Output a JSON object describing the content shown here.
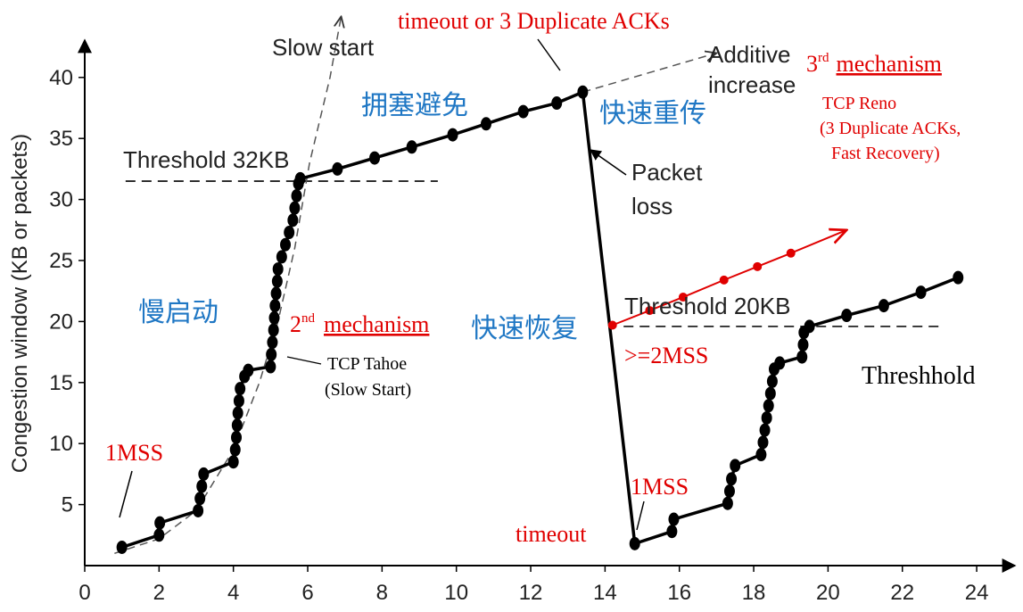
{
  "chart_data": {
    "type": "line",
    "ylabel": "Congestion window (KB or packets)",
    "xlim": [
      0,
      24
    ],
    "ylim": [
      0,
      40
    ],
    "x_ticks": [
      0,
      2,
      4,
      6,
      8,
      10,
      12,
      14,
      16,
      18,
      20,
      22,
      24
    ],
    "y_ticks": [
      5,
      10,
      15,
      20,
      25,
      30,
      35,
      40
    ],
    "grid": false,
    "series": [
      {
        "color": "#000000",
        "points": [
          [
            1,
            1.5
          ],
          [
            2,
            2.5
          ],
          [
            2.02,
            3.5
          ],
          [
            3.05,
            4.5
          ],
          [
            3.1,
            5.5
          ],
          [
            3.15,
            6.5
          ],
          [
            3.2,
            7.5
          ],
          [
            4,
            8.5
          ],
          [
            4.05,
            9.5
          ],
          [
            4.08,
            10.5
          ],
          [
            4.1,
            11.5
          ],
          [
            4.12,
            12.5
          ],
          [
            4.15,
            13.5
          ],
          [
            4.18,
            14.5
          ],
          [
            4.3,
            15.5
          ],
          [
            4.4,
            16
          ],
          [
            5,
            16.3
          ],
          [
            5.02,
            17.3
          ],
          [
            5.05,
            18.3
          ],
          [
            5.08,
            19.3
          ],
          [
            5.1,
            20.3
          ],
          [
            5.12,
            21.3
          ],
          [
            5.15,
            22.3
          ],
          [
            5.18,
            23.3
          ],
          [
            5.2,
            24.3
          ],
          [
            5.3,
            25.3
          ],
          [
            5.4,
            26.3
          ],
          [
            5.5,
            27.3
          ],
          [
            5.6,
            28.3
          ],
          [
            5.65,
            29.3
          ],
          [
            5.7,
            30.3
          ],
          [
            5.75,
            31.3
          ],
          [
            5.8,
            31.7
          ],
          [
            6.8,
            32.5
          ],
          [
            7.8,
            33.4
          ],
          [
            8.8,
            34.3
          ],
          [
            9.9,
            35.3
          ],
          [
            10.8,
            36.2
          ],
          [
            11.8,
            37.2
          ],
          [
            12.7,
            37.9
          ],
          [
            13.4,
            38.8
          ],
          [
            14.8,
            1.8
          ],
          [
            15.8,
            2.8
          ],
          [
            15.85,
            3.8
          ],
          [
            17.3,
            5.1
          ],
          [
            17.35,
            6.1
          ],
          [
            17.4,
            7.1
          ],
          [
            17.5,
            8.2
          ],
          [
            18.2,
            9.1
          ],
          [
            18.25,
            10.1
          ],
          [
            18.3,
            11.1
          ],
          [
            18.35,
            12.1
          ],
          [
            18.4,
            13.1
          ],
          [
            18.45,
            14.1
          ],
          [
            18.5,
            15.1
          ],
          [
            18.55,
            16.1
          ],
          [
            18.7,
            16.6
          ],
          [
            19.3,
            17.1
          ],
          [
            19.33,
            18.1
          ],
          [
            19.35,
            19.1
          ],
          [
            19.5,
            19.6
          ],
          [
            20.5,
            20.5
          ],
          [
            21.5,
            21.3
          ],
          [
            22.5,
            22.4
          ],
          [
            23.5,
            23.6
          ]
        ]
      },
      {
        "color": "#e00000",
        "points": [
          [
            14.2,
            19.7
          ],
          [
            15.2,
            20.9
          ],
          [
            16.1,
            22
          ],
          [
            17.2,
            23.4
          ],
          [
            18.1,
            24.5
          ],
          [
            19,
            25.6
          ]
        ]
      }
    ],
    "slow_start_curve": [
      [
        0.8,
        1
      ],
      [
        2,
        2.2
      ],
      [
        3,
        4.5
      ],
      [
        4,
        9.5
      ],
      [
        4.7,
        15
      ],
      [
        5.2,
        20
      ],
      [
        5.65,
        26
      ],
      [
        6.05,
        33
      ],
      [
        6.6,
        40
      ],
      [
        6.9,
        45
      ]
    ],
    "additive_increase_line": [
      [
        13.4,
        38.8
      ],
      [
        17,
        42
      ]
    ],
    "reno_arrow": [
      [
        19,
        25.6
      ],
      [
        20.5,
        27.5
      ]
    ],
    "thresholds": [
      {
        "label": "Threshold 32KB",
        "value": 31.5,
        "x_from": 1.1,
        "x_to": 9.5
      },
      {
        "label": "Threshold 20KB",
        "value": 19.6,
        "x_from": 14.5,
        "x_to": 23
      }
    ],
    "annotations": {
      "slow_start": "Slow start",
      "timeout_dup": "timeout or 3 Duplicate ACKs",
      "additive_increase": "Additive\nincrease",
      "third_mech_number": "3",
      "third_mech_sup": "rd",
      "third_mech_word": "mechanism",
      "tcp_reno": "TCP Reno",
      "reno_detail_1": "(3 Duplicate ACKs,",
      "reno_detail_2": "Fast Recovery)",
      "congestion_avoidance_cn": "拥塞避免",
      "fast_retransmit_cn": "快速重传",
      "packet_loss": "Packet\nloss",
      "slow_start_cn": "慢启动",
      "second_mech_number": "2",
      "second_mech_sup": "nd",
      "second_mech_word": "mechanism",
      "fast_recovery_cn": "快速恢复",
      "ge_2mss": ">=2MSS",
      "tcp_tahoe": "TCP Tahoe",
      "tahoe_detail": "(Slow Start)",
      "threshhold": "Threshhold",
      "one_mss_left": "1MSS",
      "one_mss_right": "1MSS",
      "timeout": "timeout"
    },
    "colors": {
      "axis": "#000000",
      "red": "#e00000",
      "blue": "#1f77c4",
      "dashed": "#555555"
    }
  }
}
